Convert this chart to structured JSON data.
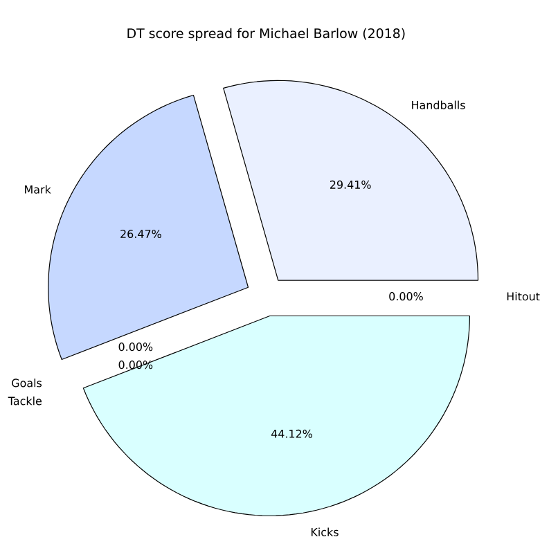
{
  "chart_data": {
    "type": "pie",
    "title": "DT score spread for Michael Barlow (2018)",
    "categories": [
      "Handballs",
      "Mark",
      "Goals",
      "Tackle",
      "Kicks",
      "Hitout"
    ],
    "values": [
      29.41,
      26.47,
      0,
      0,
      44.12,
      0
    ],
    "value_labels": [
      "29.41%",
      "26.47%",
      "0.00%",
      "0.00%",
      "44.12%",
      "0.00%"
    ],
    "colors": [
      "#eaf0ff",
      "#c6d8ff",
      "#b0c4de",
      "#add8e6",
      "#d9ffff",
      "#e0ffff"
    ]
  }
}
